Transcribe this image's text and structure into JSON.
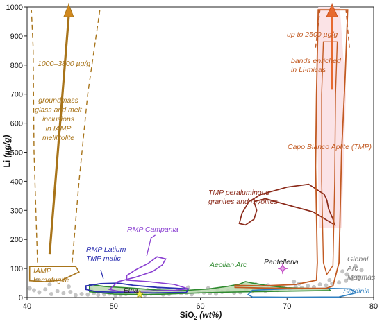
{
  "chart_data": {
    "type": "scatter",
    "xlabel": "SiO",
    "xlabel_sub": "2",
    "xlabel_unit": "(wt%)",
    "ylabel": "Li",
    "ylabel_unit": "(µg/g)",
    "xlim": [
      40,
      80
    ],
    "ylim": [
      0,
      1000
    ],
    "xticks": [
      40,
      50,
      60,
      70,
      80
    ],
    "yticks": [
      0,
      100,
      200,
      300,
      400,
      500,
      600,
      700,
      800,
      900,
      1000
    ],
    "colors": {
      "iamp": "#a8741a",
      "rmp_latium": "#2b2fb0",
      "rmp_campania": "#8a3fd1",
      "aeolian": "#2f8a2f",
      "sardinia": "#2f7fc0",
      "pantelleria": "#c44fc6",
      "tmp_granites": "#8b2a1a",
      "capo_bianco": "#c25a22",
      "global": "#999999",
      "etna": "#f3ef4a",
      "green_fill": "#b9d8ae"
    },
    "labels": {
      "iamp_range": "1000–3800 µg/g",
      "groundmass": [
        "groundmass",
        "glass and melt",
        "inclusions",
        "in IAMP",
        "melilitolite"
      ],
      "iamp_kamafugite": [
        "IAMP",
        "kamafugite"
      ],
      "rmp_latium": [
        "RMP Latium",
        "TMP mafic"
      ],
      "rmp_campania": "RMP Campania",
      "etna": "Etna",
      "aeolian": "Aeolian Arc",
      "pantelleria": "Pantelleria",
      "tmp_granites": [
        "TMP peraluminous",
        "granites and rhyolites"
      ],
      "capo_bianco": "Capo Bianco Aplite (TMP)",
      "up_to": "up to 2500 µg/g",
      "bands": [
        "bands enriched",
        "in Li-micas"
      ],
      "global": [
        "Global",
        "Arc",
        "Magmas"
      ],
      "sardinia": "Sardinia"
    },
    "global_arc_magmas": [
      [
        40.3,
        32
      ],
      [
        40.8,
        25
      ],
      [
        41.4,
        18
      ],
      [
        42.1,
        28
      ],
      [
        42.8,
        12
      ],
      [
        43.5,
        22
      ],
      [
        44.2,
        15
      ],
      [
        45.0,
        19
      ],
      [
        45.6,
        8
      ],
      [
        46.3,
        12
      ],
      [
        47.0,
        10
      ],
      [
        47.7,
        14
      ],
      [
        48.2,
        9
      ],
      [
        48.9,
        11
      ],
      [
        49.5,
        13
      ],
      [
        50.2,
        8
      ],
      [
        50.8,
        10
      ],
      [
        51.4,
        12
      ],
      [
        52.1,
        14
      ],
      [
        52.9,
        11
      ],
      [
        53.6,
        9
      ],
      [
        54.3,
        13
      ],
      [
        55.0,
        15
      ],
      [
        55.7,
        10
      ],
      [
        56.4,
        12
      ],
      [
        57.1,
        18
      ],
      [
        57.8,
        14
      ],
      [
        58.4,
        16
      ],
      [
        59.0,
        11
      ],
      [
        59.8,
        20
      ],
      [
        60.4,
        17
      ],
      [
        61.1,
        15
      ],
      [
        61.8,
        13
      ],
      [
        62.5,
        19
      ],
      [
        63.2,
        22
      ],
      [
        63.9,
        16
      ],
      [
        64.6,
        18
      ],
      [
        65.3,
        25
      ],
      [
        66.0,
        21
      ],
      [
        66.8,
        28
      ],
      [
        67.5,
        23
      ],
      [
        68.2,
        30
      ],
      [
        68.9,
        26
      ],
      [
        69.6,
        34
      ],
      [
        70.3,
        29
      ],
      [
        71.0,
        38
      ],
      [
        71.7,
        33
      ],
      [
        72.4,
        40
      ],
      [
        73.1,
        36
      ],
      [
        73.8,
        45
      ],
      [
        74.5,
        42
      ],
      [
        75.2,
        48
      ],
      [
        76.0,
        52
      ],
      [
        76.8,
        58
      ],
      [
        77.5,
        64
      ],
      [
        78.2,
        70
      ],
      [
        55.2,
        30
      ],
      [
        58.6,
        35
      ],
      [
        62.0,
        28
      ],
      [
        66.4,
        45
      ],
      [
        70.8,
        55
      ],
      [
        76.4,
        90
      ],
      [
        77.9,
        108
      ],
      [
        41.2,
        60
      ],
      [
        42.6,
        45
      ],
      [
        44.8,
        38
      ],
      [
        47.4,
        28
      ],
      [
        50.6,
        22
      ],
      [
        53.9,
        26
      ],
      [
        57.4,
        24
      ],
      [
        60.9,
        32
      ],
      [
        64.2,
        36
      ],
      [
        67.8,
        42
      ],
      [
        71.4,
        48
      ],
      [
        74.9,
        60
      ],
      [
        76.9,
        80
      ],
      [
        78.6,
        95
      ]
    ],
    "etna_point": [
      53,
      12
    ],
    "pantelleria_point": [
      69.5,
      100
    ],
    "iamp_arrow": {
      "x": [
        42.6,
        44.8
      ],
      "y": [
        150,
        990
      ]
    },
    "capo_arrow": {
      "x": [
        75.2,
        75.2
      ],
      "y": [
        715,
        990
      ]
    },
    "green_field_points": [
      [
        47,
        38
      ],
      [
        48,
        36
      ],
      [
        49,
        34
      ],
      [
        50,
        33
      ],
      [
        51,
        32
      ],
      [
        52,
        30
      ],
      [
        53,
        28
      ],
      [
        54,
        26
      ],
      [
        55,
        24
      ],
      [
        56,
        22
      ],
      [
        57,
        22
      ],
      [
        58,
        24
      ],
      [
        59,
        26
      ],
      [
        60,
        28
      ],
      [
        61,
        31
      ],
      [
        62,
        33
      ],
      [
        63,
        36
      ],
      [
        64,
        39
      ],
      [
        65,
        40
      ],
      [
        66,
        38
      ],
      [
        67,
        36
      ],
      [
        68,
        32
      ],
      [
        69,
        30
      ],
      [
        70,
        28
      ],
      [
        71,
        26
      ],
      [
        72,
        24
      ],
      [
        73,
        22
      ],
      [
        74,
        20
      ],
      [
        75,
        18
      ],
      [
        66,
        20
      ],
      [
        62,
        20
      ],
      [
        58,
        14
      ],
      [
        54,
        10
      ],
      [
        50,
        12
      ],
      [
        47,
        18
      ]
    ]
  }
}
